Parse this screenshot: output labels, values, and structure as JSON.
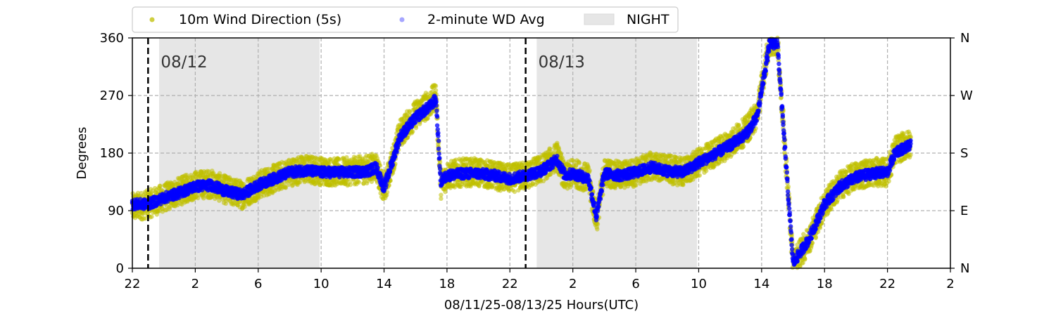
{
  "chart_data": {
    "type": "scatter",
    "title": "",
    "xlabel": "08/11/25-08/13/25  Hours(UTC)",
    "ylabel": "Degrees",
    "x_domain_hours": [
      0,
      52
    ],
    "x_tick_values": [
      0,
      4,
      8,
      12,
      16,
      20,
      24,
      28,
      32,
      36,
      40,
      44,
      48,
      52
    ],
    "x_tick_labels": [
      "22",
      "2",
      "6",
      "10",
      "14",
      "18",
      "22",
      "2",
      "6",
      "10",
      "14",
      "18",
      "22",
      "2"
    ],
    "ylim": [
      0,
      360
    ],
    "y_ticks": [
      0,
      90,
      180,
      270,
      360
    ],
    "y_tick_labels": [
      "0",
      "90",
      "180",
      "270",
      "360"
    ],
    "y2_tick_labels": [
      "N",
      "E",
      "S",
      "W",
      "N"
    ],
    "grid": true,
    "legend_placement": "top-left outside",
    "legend": [
      {
        "label": "10m Wind Direction (5s)",
        "kind": "dot",
        "color": "#bfbf00"
      },
      {
        "label": "2-minute WD Avg",
        "kind": "dot",
        "color": "#0000ff"
      },
      {
        "label": "NIGHT",
        "kind": "patch",
        "color": "#e6e6e6"
      }
    ],
    "night_bands_hours": [
      [
        1.7,
        11.9
      ],
      [
        25.7,
        35.9
      ]
    ],
    "day_markers": [
      {
        "hour": 1.0,
        "label": "08/12"
      },
      {
        "hour": 25.0,
        "label": "08/13"
      }
    ],
    "series": [
      {
        "name": "10m Wind Direction (5s)",
        "color": "#bfbf00",
        "spread_deg": 22,
        "x": [
          0,
          1,
          2,
          3,
          4,
          5,
          6,
          7,
          8,
          9,
          10,
          11,
          12,
          13,
          14,
          15,
          15.5,
          16,
          17,
          18,
          19,
          19.3,
          19.6,
          20,
          21,
          22,
          23,
          24,
          25,
          26,
          27,
          27.5,
          28,
          29,
          29.5,
          30,
          31,
          32,
          33,
          34,
          35,
          36,
          37,
          38,
          39,
          39.7,
          40.5,
          41,
          42,
          43,
          44,
          45,
          46,
          47,
          48,
          48.5,
          49.5
        ],
        "values": [
          95,
          100,
          110,
          120,
          130,
          132,
          122,
          115,
          130,
          140,
          150,
          155,
          152,
          150,
          152,
          155,
          160,
          120,
          210,
          240,
          260,
          270,
          130,
          145,
          150,
          150,
          145,
          140,
          145,
          155,
          175,
          140,
          150,
          140,
          75,
          150,
          145,
          150,
          160,
          155,
          150,
          165,
          180,
          195,
          215,
          240,
          355,
          355,
          5,
          45,
          100,
          130,
          145,
          150,
          150,
          185,
          195
        ]
      },
      {
        "name": "2-minute WD Avg",
        "color": "#0000ff",
        "spread_deg": 8,
        "x": [
          0,
          1,
          2,
          3,
          4,
          5,
          6,
          7,
          8,
          9,
          10,
          11,
          12,
          13,
          14,
          15,
          15.5,
          16,
          17,
          18,
          19,
          19.3,
          19.6,
          20,
          21,
          22,
          23,
          24,
          25,
          26,
          27,
          27.5,
          28,
          29,
          29.5,
          30,
          31,
          32,
          33,
          34,
          35,
          36,
          37,
          38,
          39,
          39.7,
          40.5,
          41,
          42,
          43,
          44,
          45,
          46,
          47,
          48,
          48.5,
          49.5
        ],
        "values": [
          100,
          100,
          110,
          118,
          128,
          130,
          120,
          115,
          130,
          140,
          150,
          153,
          150,
          150,
          150,
          152,
          158,
          125,
          205,
          235,
          255,
          265,
          135,
          145,
          148,
          148,
          145,
          140,
          145,
          152,
          170,
          145,
          148,
          140,
          80,
          148,
          145,
          150,
          158,
          152,
          150,
          165,
          178,
          192,
          210,
          235,
          350,
          352,
          8,
          45,
          100,
          128,
          142,
          148,
          150,
          182,
          192
        ]
      }
    ]
  }
}
